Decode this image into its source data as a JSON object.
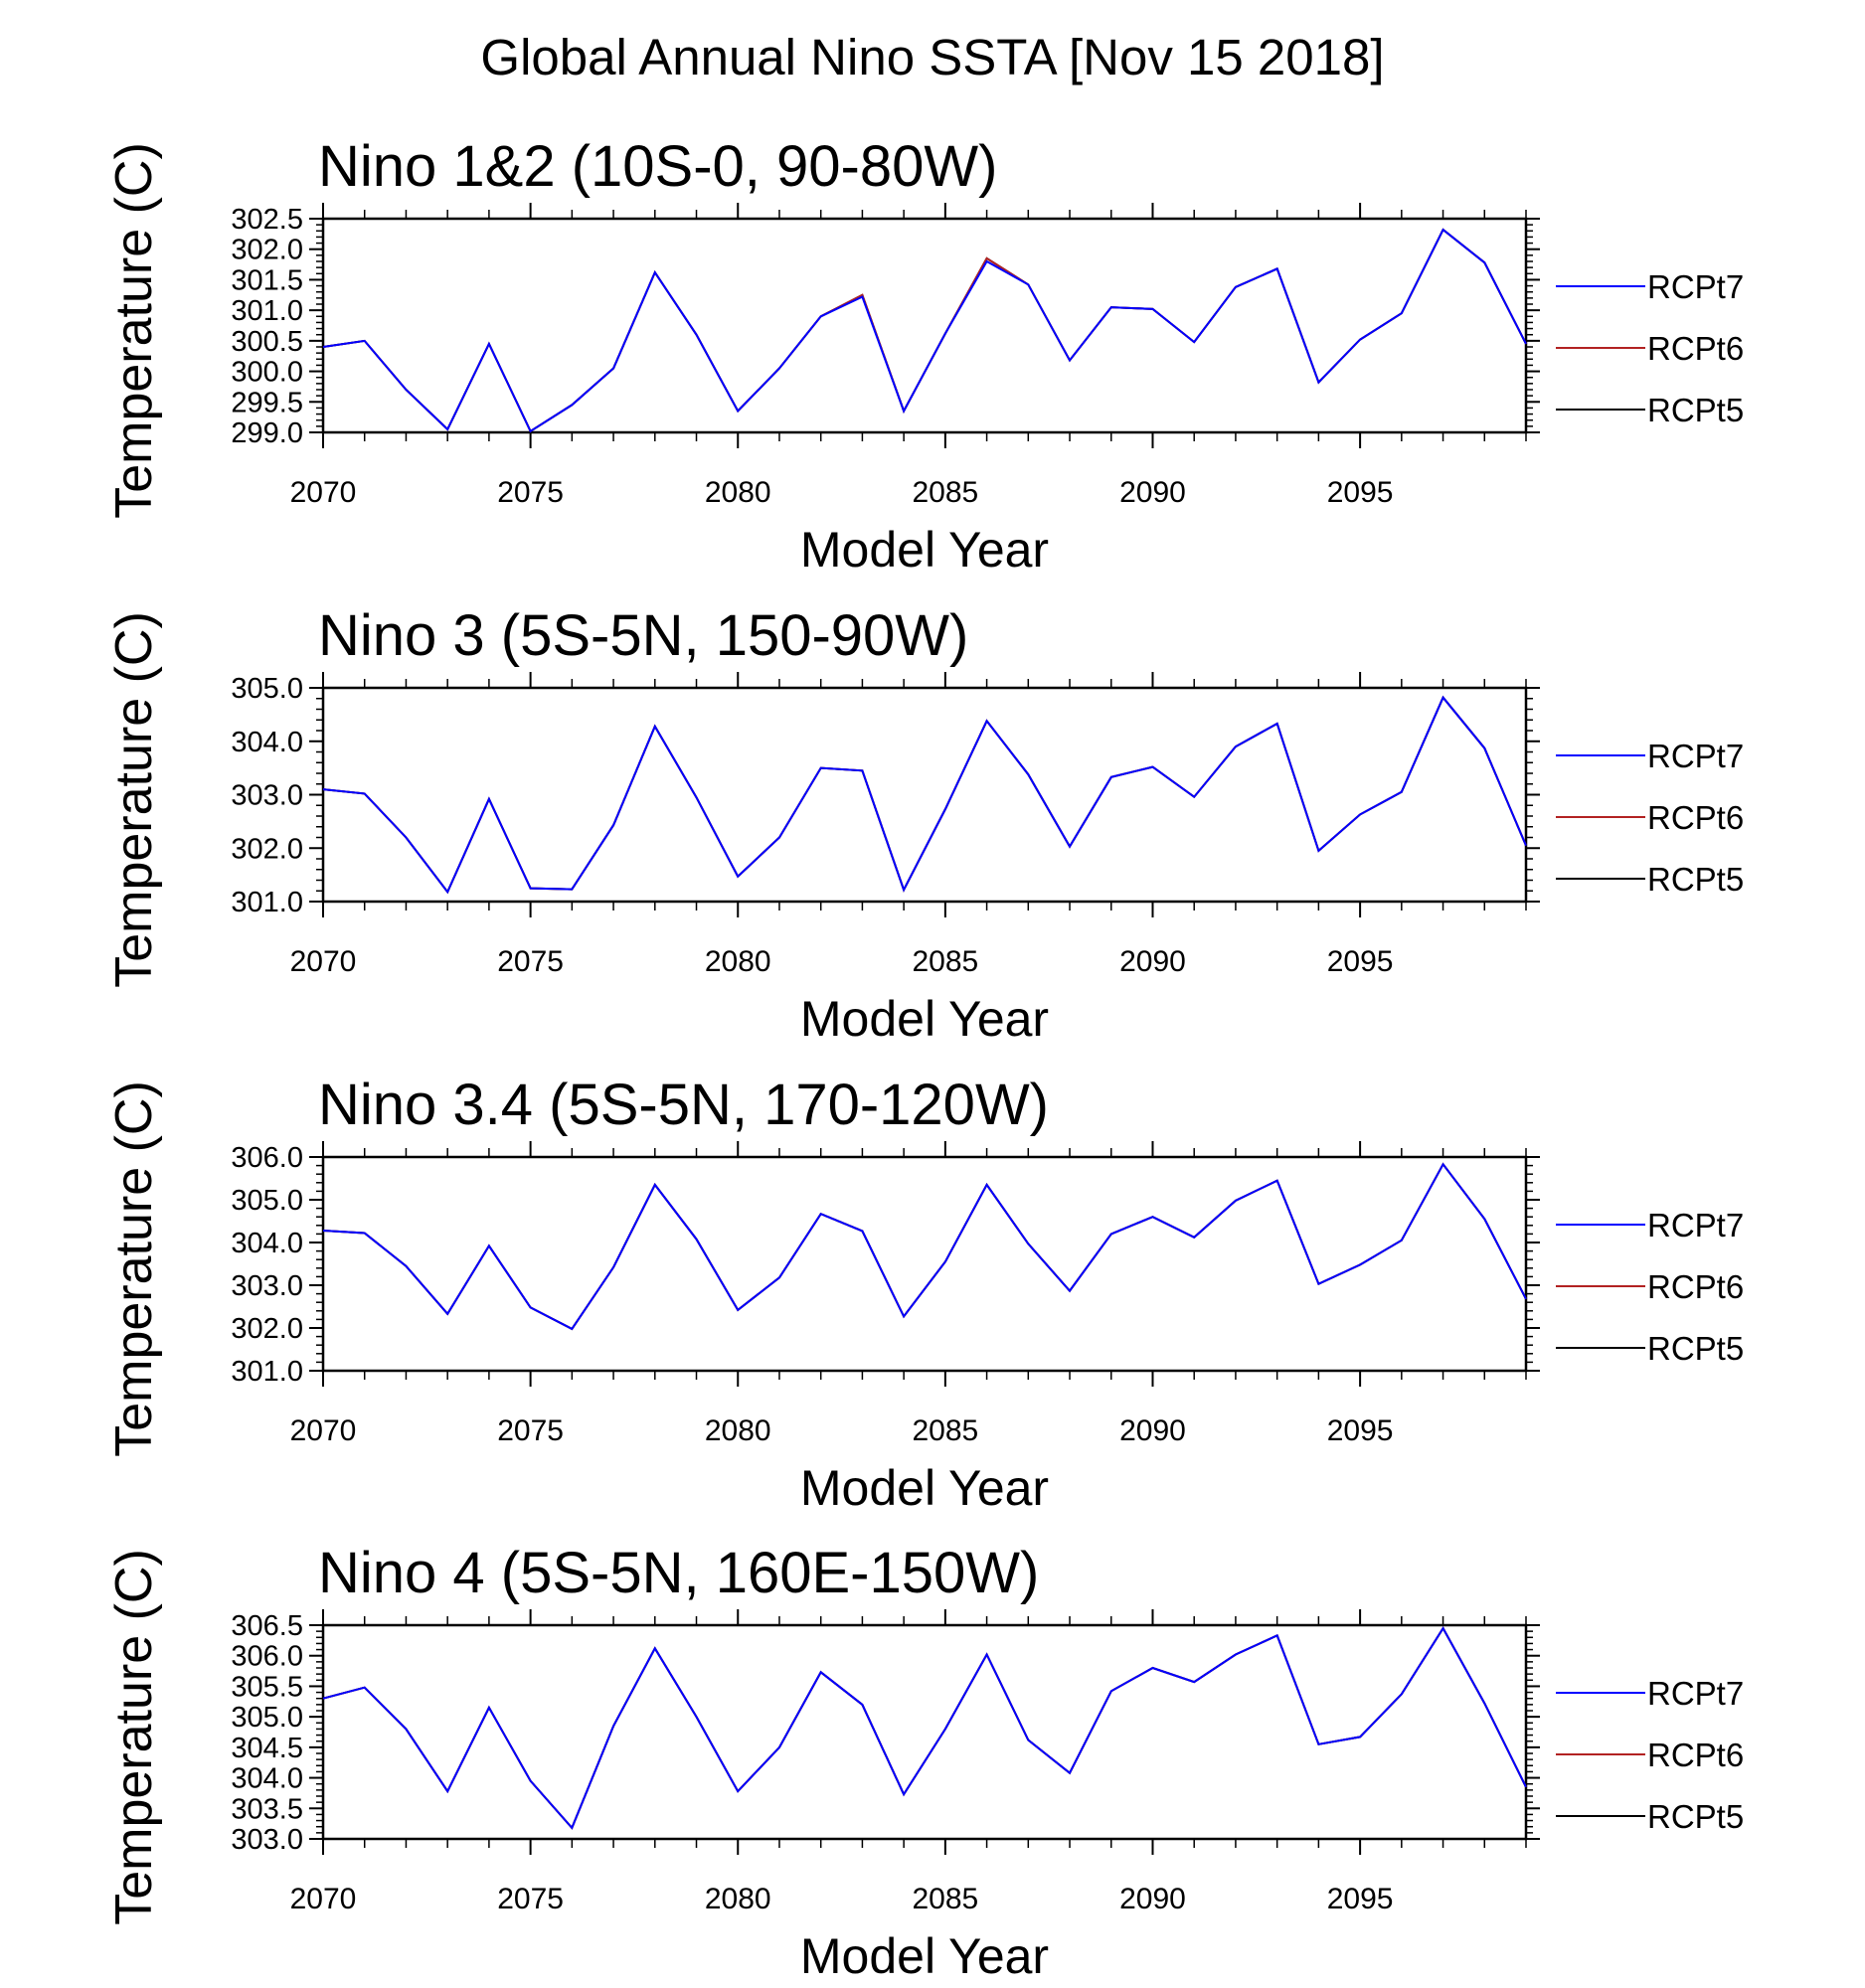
{
  "figure_title": "Global Annual Nino SSTA [Nov 15 2018]",
  "chart_data": [
    {
      "type": "line",
      "title": "Nino 1&2 (10S-0, 90-80W)",
      "xlabel": "Model Year",
      "ylabel": "Temperature (C)",
      "xlim": [
        2070,
        2099
      ],
      "ylim": [
        299.0,
        302.5
      ],
      "yticks": [
        299.0,
        299.5,
        300.0,
        300.5,
        301.0,
        301.5,
        302.0,
        302.5
      ],
      "ytick_labels": [
        "299.0",
        "299.5",
        "300.0",
        "300.5",
        "301.0",
        "301.5",
        "302.0",
        "302.5"
      ],
      "xticks": [
        2070,
        2075,
        2080,
        2085,
        2090,
        2095
      ],
      "xtick_labels": [
        "2070",
        "2075",
        "2080",
        "2085",
        "2090",
        "2095"
      ],
      "x": [
        2070,
        2071,
        2072,
        2073,
        2074,
        2075,
        2076,
        2077,
        2078,
        2079,
        2080,
        2081,
        2082,
        2083,
        2084,
        2085,
        2086,
        2087,
        2088,
        2089,
        2090,
        2091,
        2092,
        2093,
        2094,
        2095,
        2096,
        2097,
        2098,
        2099
      ],
      "legend_position": "right",
      "series": [
        {
          "name": "RCPt5",
          "color": "#000000",
          "values": [
            300.4,
            300.5,
            299.7,
            299.05,
            300.45,
            299.02,
            299.45,
            300.05,
            301.62,
            300.6,
            299.35,
            300.05,
            300.9,
            301.25,
            299.35,
            300.62,
            301.85,
            301.42,
            300.18,
            301.05,
            301.02,
            300.48,
            301.38,
            301.68,
            299.82,
            300.52,
            300.95,
            302.32,
            301.78,
            300.45
          ]
        },
        {
          "name": "RCPt6",
          "color": "#b22222",
          "values": [
            300.4,
            300.5,
            299.7,
            299.05,
            300.45,
            299.02,
            299.45,
            300.05,
            301.62,
            300.6,
            299.35,
            300.05,
            300.9,
            301.25,
            299.35,
            300.62,
            301.85,
            301.42,
            300.18,
            301.05,
            301.02,
            300.48,
            301.38,
            301.68,
            299.82,
            300.52,
            300.95,
            302.32,
            301.78,
            300.45
          ]
        },
        {
          "name": "RCPt7",
          "color": "#0000ff",
          "values": [
            300.4,
            300.5,
            299.7,
            299.05,
            300.45,
            299.02,
            299.45,
            300.05,
            301.62,
            300.6,
            299.35,
            300.05,
            300.9,
            301.22,
            299.35,
            300.62,
            301.8,
            301.42,
            300.18,
            301.05,
            301.02,
            300.48,
            301.38,
            301.68,
            299.82,
            300.52,
            300.95,
            302.32,
            301.78,
            300.45
          ]
        }
      ]
    },
    {
      "type": "line",
      "title": "Nino 3 (5S-5N, 150-90W)",
      "xlabel": "Model Year",
      "ylabel": "Temperature (C)",
      "xlim": [
        2070,
        2099
      ],
      "ylim": [
        301.0,
        305.0
      ],
      "yticks": [
        301.0,
        302.0,
        303.0,
        304.0,
        305.0
      ],
      "ytick_labels": [
        "301.0",
        "302.0",
        "303.0",
        "304.0",
        "305.0"
      ],
      "xticks": [
        2070,
        2075,
        2080,
        2085,
        2090,
        2095
      ],
      "xtick_labels": [
        "2070",
        "2075",
        "2080",
        "2085",
        "2090",
        "2095"
      ],
      "x": [
        2070,
        2071,
        2072,
        2073,
        2074,
        2075,
        2076,
        2077,
        2078,
        2079,
        2080,
        2081,
        2082,
        2083,
        2084,
        2085,
        2086,
        2087,
        2088,
        2089,
        2090,
        2091,
        2092,
        2093,
        2094,
        2095,
        2096,
        2097,
        2098,
        2099
      ],
      "legend_position": "right",
      "series": [
        {
          "name": "RCPt5",
          "color": "#000000",
          "values": [
            303.1,
            303.02,
            302.2,
            301.18,
            302.92,
            301.25,
            301.23,
            302.43,
            304.28,
            302.95,
            301.47,
            302.2,
            303.5,
            303.45,
            301.22,
            302.73,
            304.38,
            303.38,
            302.03,
            303.33,
            303.52,
            302.96,
            303.9,
            304.33,
            301.95,
            302.63,
            303.05,
            304.82,
            303.87,
            302.05
          ]
        },
        {
          "name": "RCPt6",
          "color": "#b22222",
          "values": [
            303.1,
            303.02,
            302.2,
            301.18,
            302.92,
            301.25,
            301.23,
            302.43,
            304.28,
            302.95,
            301.47,
            302.2,
            303.5,
            303.45,
            301.22,
            302.73,
            304.38,
            303.38,
            302.03,
            303.33,
            303.52,
            302.96,
            303.9,
            304.33,
            301.95,
            302.63,
            303.05,
            304.82,
            303.87,
            302.05
          ]
        },
        {
          "name": "RCPt7",
          "color": "#0000ff",
          "values": [
            303.1,
            303.02,
            302.2,
            301.18,
            302.92,
            301.25,
            301.23,
            302.43,
            304.28,
            302.95,
            301.47,
            302.2,
            303.5,
            303.45,
            301.22,
            302.73,
            304.38,
            303.38,
            302.03,
            303.33,
            303.52,
            302.96,
            303.9,
            304.33,
            301.95,
            302.63,
            303.05,
            304.82,
            303.87,
            302.05
          ]
        }
      ]
    },
    {
      "type": "line",
      "title": "Nino 3.4 (5S-5N, 170-120W)",
      "xlabel": "Model Year",
      "ylabel": "Temperature (C)",
      "xlim": [
        2070,
        2099
      ],
      "ylim": [
        301.0,
        306.0
      ],
      "yticks": [
        301.0,
        302.0,
        303.0,
        304.0,
        305.0,
        306.0
      ],
      "ytick_labels": [
        "301.0",
        "302.0",
        "303.0",
        "304.0",
        "305.0",
        "306.0"
      ],
      "xticks": [
        2070,
        2075,
        2080,
        2085,
        2090,
        2095
      ],
      "xtick_labels": [
        "2070",
        "2075",
        "2080",
        "2085",
        "2090",
        "2095"
      ],
      "x": [
        2070,
        2071,
        2072,
        2073,
        2074,
        2075,
        2076,
        2077,
        2078,
        2079,
        2080,
        2081,
        2082,
        2083,
        2084,
        2085,
        2086,
        2087,
        2088,
        2089,
        2090,
        2091,
        2092,
        2093,
        2094,
        2095,
        2096,
        2097,
        2098,
        2099
      ],
      "legend_position": "right",
      "series": [
        {
          "name": "RCPt5",
          "color": "#000000",
          "values": [
            304.28,
            304.22,
            303.45,
            302.33,
            303.92,
            302.48,
            301.98,
            303.42,
            305.35,
            304.08,
            302.42,
            303.18,
            304.67,
            304.27,
            302.27,
            303.55,
            305.35,
            303.97,
            302.87,
            304.2,
            304.6,
            304.12,
            304.98,
            305.45,
            303.03,
            303.48,
            304.05,
            305.83,
            304.55,
            302.68
          ]
        },
        {
          "name": "RCPt6",
          "color": "#b22222",
          "values": [
            304.28,
            304.22,
            303.45,
            302.33,
            303.92,
            302.48,
            301.98,
            303.42,
            305.35,
            304.08,
            302.42,
            303.18,
            304.67,
            304.27,
            302.27,
            303.55,
            305.35,
            303.97,
            302.87,
            304.2,
            304.6,
            304.12,
            304.98,
            305.45,
            303.03,
            303.48,
            304.05,
            305.83,
            304.55,
            302.68
          ]
        },
        {
          "name": "RCPt7",
          "color": "#0000ff",
          "values": [
            304.28,
            304.22,
            303.45,
            302.33,
            303.92,
            302.48,
            301.98,
            303.42,
            305.35,
            304.08,
            302.42,
            303.18,
            304.67,
            304.27,
            302.27,
            303.55,
            305.35,
            303.97,
            302.87,
            304.2,
            304.6,
            304.12,
            304.98,
            305.45,
            303.03,
            303.48,
            304.05,
            305.83,
            304.55,
            302.68
          ]
        }
      ]
    },
    {
      "type": "line",
      "title": "Nino 4 (5S-5N, 160E-150W)",
      "xlabel": "Model Year",
      "ylabel": "Temperature (C)",
      "xlim": [
        2070,
        2099
      ],
      "ylim": [
        303.0,
        306.5
      ],
      "yticks": [
        303.0,
        303.5,
        304.0,
        304.5,
        305.0,
        305.5,
        306.0,
        306.5
      ],
      "ytick_labels": [
        "303.0",
        "303.5",
        "304.0",
        "304.5",
        "305.0",
        "305.5",
        "306.0",
        "306.5"
      ],
      "xticks": [
        2070,
        2075,
        2080,
        2085,
        2090,
        2095
      ],
      "xtick_labels": [
        "2070",
        "2075",
        "2080",
        "2085",
        "2090",
        "2095"
      ],
      "x": [
        2070,
        2071,
        2072,
        2073,
        2074,
        2075,
        2076,
        2077,
        2078,
        2079,
        2080,
        2081,
        2082,
        2083,
        2084,
        2085,
        2086,
        2087,
        2088,
        2089,
        2090,
        2091,
        2092,
        2093,
        2094,
        2095,
        2096,
        2097,
        2098,
        2099
      ],
      "legend_position": "right",
      "series": [
        {
          "name": "RCPt5",
          "color": "#000000",
          "values": [
            305.3,
            305.48,
            304.8,
            303.78,
            305.15,
            303.95,
            303.18,
            304.85,
            306.12,
            305.0,
            303.78,
            304.5,
            305.73,
            305.2,
            303.73,
            304.8,
            306.02,
            304.62,
            304.08,
            305.42,
            305.8,
            305.57,
            306.02,
            306.33,
            304.55,
            304.67,
            305.37,
            306.45,
            305.22,
            303.85
          ]
        },
        {
          "name": "RCPt6",
          "color": "#b22222",
          "values": [
            305.3,
            305.48,
            304.8,
            303.78,
            305.15,
            303.95,
            303.18,
            304.85,
            306.12,
            305.0,
            303.78,
            304.5,
            305.73,
            305.2,
            303.73,
            304.8,
            306.02,
            304.62,
            304.08,
            305.42,
            305.8,
            305.57,
            306.02,
            306.33,
            304.55,
            304.67,
            305.37,
            306.45,
            305.22,
            303.85
          ]
        },
        {
          "name": "RCPt7",
          "color": "#0000ff",
          "values": [
            305.3,
            305.48,
            304.8,
            303.78,
            305.15,
            303.95,
            303.18,
            304.85,
            306.12,
            305.0,
            303.78,
            304.5,
            305.73,
            305.2,
            303.73,
            304.8,
            306.02,
            304.62,
            304.08,
            305.42,
            305.8,
            305.57,
            306.02,
            306.33,
            304.55,
            304.67,
            305.37,
            306.45,
            305.22,
            303.85
          ]
        }
      ]
    }
  ]
}
